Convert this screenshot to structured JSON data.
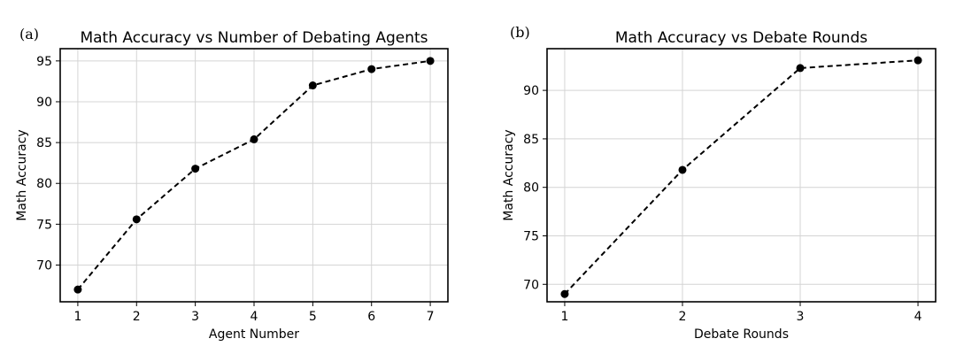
{
  "chart_data": [
    {
      "panel": "(a)",
      "type": "line",
      "title": "Math Accuracy vs Number of Debating Agents",
      "xlabel": "Agent Number",
      "ylabel": "Math Accuracy",
      "x": [
        1,
        2,
        3,
        4,
        5,
        6,
        7
      ],
      "values": [
        67.0,
        75.6,
        81.8,
        85.4,
        92.0,
        94.0,
        95.0
      ],
      "xticks": [
        1,
        2,
        3,
        4,
        5,
        6,
        7
      ],
      "yticks": [
        70,
        75,
        80,
        85,
        90,
        95
      ],
      "xlim": [
        0.7,
        7.3
      ],
      "ylim": [
        65.5,
        96.5
      ],
      "grid": true,
      "line_style": "dashed",
      "marker": "circle",
      "color": "#000000"
    },
    {
      "panel": "(b)",
      "type": "line",
      "title": "Math Accuracy vs Debate Rounds",
      "xlabel": "Debate Rounds",
      "ylabel": "Math Accuracy",
      "x": [
        1,
        2,
        3,
        4
      ],
      "values": [
        69.0,
        81.8,
        92.3,
        93.1
      ],
      "xticks": [
        1,
        2,
        3,
        4
      ],
      "yticks": [
        70,
        75,
        80,
        85,
        90
      ],
      "xlim": [
        0.85,
        4.15
      ],
      "ylim": [
        68.2,
        94.3
      ],
      "grid": true,
      "line_style": "dashed",
      "marker": "circle",
      "color": "#000000"
    }
  ]
}
